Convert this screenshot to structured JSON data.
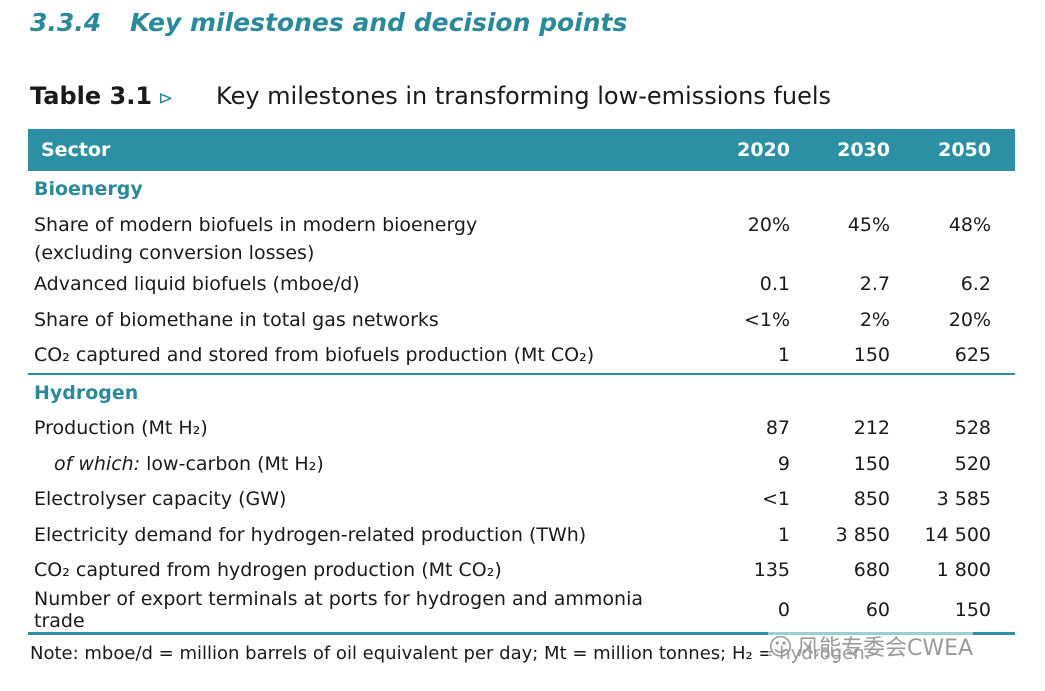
{
  "section": {
    "number": "3.3.4",
    "title": "Key milestones and decision points"
  },
  "table_title": {
    "label": "Table 3.1",
    "arrow": "⊳",
    "text": "Key milestones in transforming low-emissions fuels"
  },
  "columns": [
    "Sector",
    "2020",
    "2030",
    "2050"
  ],
  "groups": [
    {
      "name": "Bioenergy",
      "rows": [
        {
          "label": "Share of modern biofuels in modern bioenergy",
          "label2": "(excluding conversion losses)",
          "values": [
            "20%",
            "45%",
            "48%"
          ]
        },
        {
          "label": "Advanced liquid biofuels (mboe/d)",
          "values": [
            "0.1",
            "2.7",
            "6.2"
          ]
        },
        {
          "label": "Share of biomethane in total gas networks",
          "values": [
            "<1%",
            "2%",
            "20%"
          ]
        },
        {
          "label": "CO₂ captured and stored from biofuels production (Mt CO₂)",
          "values": [
            "1",
            "150",
            "625"
          ]
        }
      ]
    },
    {
      "name": "Hydrogen",
      "rows": [
        {
          "label": "Production (Mt H₂)",
          "values": [
            "87",
            "212",
            "528"
          ]
        },
        {
          "label_italic": "of which:",
          "label": " low-carbon (Mt H₂)",
          "values": [
            "9",
            "150",
            "520"
          ]
        },
        {
          "label": "Electrolyser capacity (GW)",
          "values": [
            "<1",
            "850",
            "3 585"
          ]
        },
        {
          "label": "Electricity demand for hydrogen-related production (TWh)",
          "values": [
            "1",
            "3 850",
            "14 500"
          ]
        },
        {
          "label": "CO₂ captured from hydrogen production (Mt CO₂)",
          "values": [
            "135",
            "680",
            "1 800"
          ]
        },
        {
          "label": "Number of export terminals at ports for hydrogen and ammonia trade",
          "values": [
            "0",
            "60",
            "150"
          ]
        }
      ]
    }
  ],
  "note": "Note: mboe/d = million barrels of oil equivalent per day; Mt = million tonnes; H₂ = hydrogen.",
  "watermark": {
    "icon": "wechat-icon",
    "text": "风能专委会CWEA"
  },
  "colors": {
    "accent": "#2b90a3",
    "heading": "#2a8a9a"
  }
}
